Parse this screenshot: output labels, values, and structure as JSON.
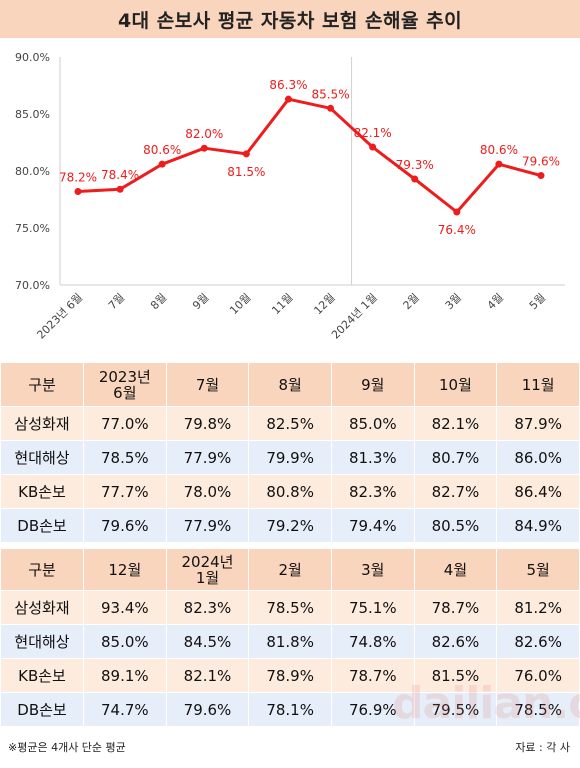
{
  "title": "4대 손보사 평균 자동차 보험 손해율 추이",
  "chart_data": {
    "type": "line",
    "title": "4대 손보사 평균 자동차 보험 손해율 추이",
    "categories": [
      "2023년 6월",
      "7월",
      "8월",
      "9월",
      "10월",
      "11월",
      "12월",
      "2024년 1월",
      "2월",
      "3월",
      "4월",
      "5월"
    ],
    "values": [
      78.2,
      78.4,
      80.6,
      82.0,
      81.5,
      86.3,
      85.5,
      82.1,
      79.3,
      76.4,
      80.6,
      79.6
    ],
    "data_labels": [
      "78.2%",
      "78.4%",
      "80.6%",
      "82.0%",
      "81.5%",
      "86.3%",
      "85.5%",
      "82.1%",
      "79.3%",
      "76.4%",
      "80.6%",
      "79.6%"
    ],
    "label_side": [
      "above",
      "above",
      "above",
      "above",
      "below",
      "above",
      "above",
      "above",
      "above",
      "below",
      "above",
      "above"
    ],
    "ylim": [
      70,
      90
    ],
    "yticks": [
      "70.0%",
      "75.0%",
      "80.0%",
      "85.0%",
      "90.0%"
    ],
    "series_color": "#ee1c1c",
    "divider_after_index": 6
  },
  "tables": [
    {
      "header": [
        "구분",
        "2023년\n6월",
        "7월",
        "8월",
        "9월",
        "10월",
        "11월"
      ],
      "rows": [
        {
          "label": "삼성화재",
          "values": [
            "77.0%",
            "79.8%",
            "82.5%",
            "85.0%",
            "82.1%",
            "87.9%"
          ]
        },
        {
          "label": "현대해상",
          "values": [
            "78.5%",
            "77.9%",
            "79.9%",
            "81.3%",
            "80.7%",
            "86.0%"
          ]
        },
        {
          "label": "KB손보",
          "values": [
            "77.7%",
            "78.0%",
            "80.8%",
            "82.3%",
            "82.7%",
            "86.4%"
          ]
        },
        {
          "label": "DB손보",
          "values": [
            "79.6%",
            "77.9%",
            "79.2%",
            "79.4%",
            "80.5%",
            "84.9%"
          ]
        }
      ]
    },
    {
      "header": [
        "구분",
        "12월",
        "2024년\n1월",
        "2월",
        "3월",
        "4월",
        "5월"
      ],
      "rows": [
        {
          "label": "삼성화재",
          "values": [
            "93.4%",
            "82.3%",
            "78.5%",
            "75.1%",
            "78.7%",
            "81.2%"
          ]
        },
        {
          "label": "현대해상",
          "values": [
            "85.0%",
            "84.5%",
            "81.8%",
            "74.8%",
            "82.6%",
            "82.6%"
          ]
        },
        {
          "label": "KB손보",
          "values": [
            "89.1%",
            "82.1%",
            "78.9%",
            "78.7%",
            "81.5%",
            "76.0%"
          ]
        },
        {
          "label": "DB손보",
          "values": [
            "74.7%",
            "79.6%",
            "78.1%",
            "76.9%",
            "79.5%",
            "78.5%"
          ]
        }
      ]
    }
  ],
  "colors": {
    "header_bg": "#f9d5bd",
    "row_peach": "#fdebdd",
    "row_blue": "#e6eef9"
  },
  "footnote": "※평균은 4개사 단순 평균",
  "source": "자료 : 각 사",
  "watermark": "dailian.co.kr"
}
